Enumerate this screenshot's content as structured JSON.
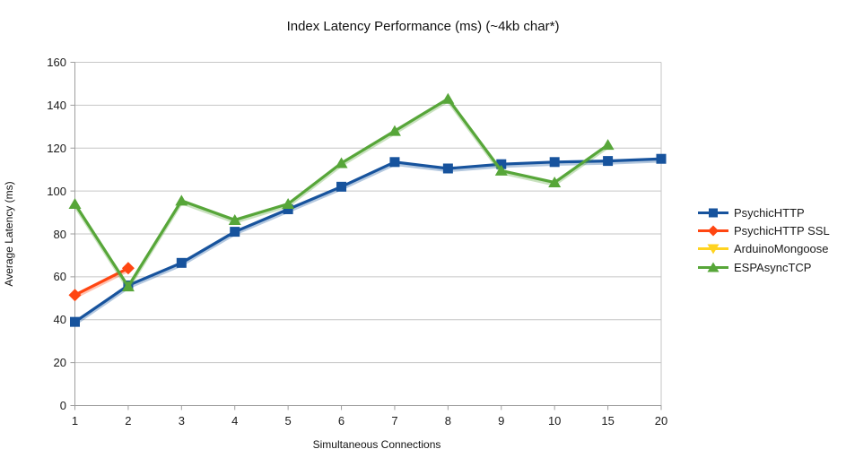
{
  "chart_data": {
    "type": "line",
    "title": "Index Latency Performance (ms) (~4kb char*)",
    "xlabel": "Simultaneous Connections",
    "ylabel": "Average Latency (ms)",
    "ylim": [
      0,
      160
    ],
    "ytick_step": 20,
    "grid": true,
    "legend_position": "right",
    "categories": [
      "1",
      "2",
      "3",
      "4",
      "5",
      "6",
      "7",
      "8",
      "9",
      "10",
      "15",
      "20"
    ],
    "series": [
      {
        "name": "PsychicHTTP",
        "color": "#17539D",
        "marker": "square",
        "values": [
          39,
          56,
          66.5,
          81,
          91.5,
          102,
          113.5,
          110.5,
          112.5,
          113.5,
          114,
          115
        ]
      },
      {
        "name": "PsychicHTTP SSL",
        "color": "#FF4612",
        "marker": "diamond",
        "values": [
          51.5,
          64,
          null,
          null,
          null,
          null,
          null,
          null,
          null,
          null,
          null,
          null
        ]
      },
      {
        "name": "ArduinoMongoose",
        "color": "#FFD320",
        "marker": "triangle-down",
        "values": [
          null,
          null,
          null,
          null,
          null,
          null,
          null,
          null,
          null,
          null,
          null,
          null
        ]
      },
      {
        "name": "ESPAsyncTCP",
        "color": "#57A639",
        "marker": "triangle-up",
        "values": [
          94,
          55.5,
          95.5,
          86.5,
          94,
          113,
          128,
          143,
          109.5,
          104,
          121.5,
          null
        ]
      }
    ],
    "colors": {
      "gridline": "#C6C6C6",
      "axis": "#9E9E9E",
      "text": "#1A1A1A"
    }
  }
}
